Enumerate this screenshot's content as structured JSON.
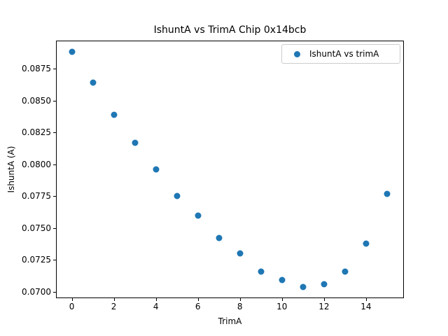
{
  "chart_data": {
    "type": "scatter",
    "title": "IshuntA vs TrimA Chip 0x14bcb",
    "xlabel": "TrimA",
    "ylabel": "IshuntA (A)",
    "legend": {
      "position": "upper right",
      "entries": [
        {
          "label": "IshuntA vs trimA",
          "marker": "circle",
          "color": "#1f77b4"
        }
      ]
    },
    "series": [
      {
        "name": "IshuntA vs trimA",
        "marker": "circle",
        "color": "#1f77b4",
        "x": [
          0,
          1,
          2,
          3,
          4,
          5,
          6,
          7,
          8,
          9,
          10,
          11,
          12,
          13,
          14,
          15
        ],
        "y": [
          0.0888,
          0.0864,
          0.0839,
          0.0817,
          0.0796,
          0.0775,
          0.076,
          0.0742,
          0.073,
          0.0716,
          0.0709,
          0.0704,
          0.0706,
          0.0716,
          0.0738,
          0.0777
        ]
      }
    ],
    "xlim": [
      -0.75,
      15.8
    ],
    "ylim": [
      0.0695,
      0.0897
    ],
    "x_ticks": {
      "values": [
        0,
        2,
        4,
        6,
        8,
        10,
        12,
        14
      ],
      "labels": [
        "0",
        "2",
        "4",
        "6",
        "8",
        "10",
        "12",
        "14"
      ]
    },
    "y_ticks": {
      "values": [
        0.07,
        0.0725,
        0.075,
        0.0775,
        0.08,
        0.0825,
        0.085,
        0.0875
      ],
      "labels": [
        "0.0700",
        "0.0725",
        "0.0750",
        "0.0775",
        "0.0800",
        "0.0825",
        "0.0850",
        "0.0875"
      ]
    },
    "grid": false,
    "background_color": "#ffffff",
    "spine_color": "#000000"
  }
}
